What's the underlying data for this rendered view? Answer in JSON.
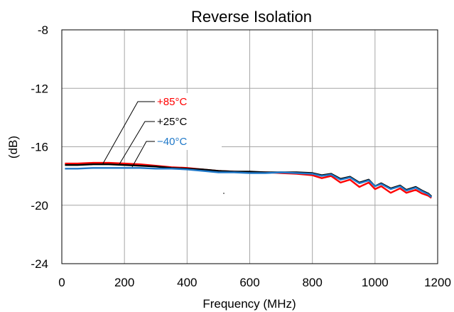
{
  "chart_data": {
    "type": "line",
    "title": "Reverse Isolation",
    "xlabel": "Frequency (MHz)",
    "ylabel": "(dB)",
    "xlim": [
      0,
      1200
    ],
    "ylim": [
      -24,
      -8
    ],
    "x_ticks": [
      "0",
      "200",
      "400",
      "600",
      "800",
      "1000",
      "1200"
    ],
    "y_ticks": [
      "-8",
      "-12",
      "-16",
      "-20",
      "-24"
    ],
    "grid": true,
    "legend": "inline labels with leader lines, upper-left",
    "series": [
      {
        "name": "+85°C",
        "color": "#ff0000",
        "x": [
          10,
          50,
          100,
          150,
          200,
          250,
          300,
          350,
          400,
          450,
          500,
          550,
          600,
          650,
          700,
          750,
          800,
          830,
          860,
          890,
          920,
          950,
          980,
          1000,
          1020,
          1050,
          1080,
          1100,
          1130,
          1150,
          1170,
          1180
        ],
        "values": [
          -17.15,
          -17.15,
          -17.1,
          -17.1,
          -17.15,
          -17.2,
          -17.3,
          -17.4,
          -17.45,
          -17.55,
          -17.65,
          -17.7,
          -17.75,
          -17.75,
          -17.8,
          -17.85,
          -17.95,
          -18.15,
          -18.0,
          -18.45,
          -18.25,
          -18.75,
          -18.45,
          -18.9,
          -18.7,
          -19.15,
          -18.85,
          -19.15,
          -18.95,
          -19.2,
          -19.35,
          -19.5
        ]
      },
      {
        "name": "+25°C",
        "color": "#000000",
        "x": [
          10,
          50,
          100,
          150,
          200,
          250,
          300,
          350,
          400,
          450,
          500,
          550,
          600,
          650,
          700,
          750,
          800,
          830,
          860,
          890,
          920,
          950,
          980,
          1000,
          1020,
          1050,
          1080,
          1100,
          1130,
          1150,
          1170,
          1180
        ],
        "values": [
          -17.25,
          -17.25,
          -17.2,
          -17.2,
          -17.25,
          -17.3,
          -17.35,
          -17.45,
          -17.5,
          -17.55,
          -17.65,
          -17.7,
          -17.7,
          -17.75,
          -17.75,
          -17.75,
          -17.8,
          -17.95,
          -17.85,
          -18.2,
          -18.05,
          -18.45,
          -18.25,
          -18.7,
          -18.5,
          -18.85,
          -18.65,
          -18.95,
          -18.75,
          -19.0,
          -19.2,
          -19.4
        ]
      },
      {
        "name": "−40°C",
        "color": "#1f78c8",
        "x": [
          10,
          50,
          100,
          150,
          200,
          250,
          300,
          350,
          400,
          450,
          500,
          550,
          600,
          650,
          700,
          750,
          800,
          830,
          860,
          890,
          920,
          950,
          980,
          1000,
          1020,
          1050,
          1080,
          1100,
          1130,
          1150,
          1170,
          1180
        ],
        "values": [
          -17.5,
          -17.5,
          -17.45,
          -17.45,
          -17.45,
          -17.45,
          -17.5,
          -17.5,
          -17.55,
          -17.65,
          -17.75,
          -17.75,
          -17.8,
          -17.8,
          -17.75,
          -17.8,
          -17.85,
          -18.0,
          -17.9,
          -18.25,
          -18.1,
          -18.5,
          -18.3,
          -18.7,
          -18.55,
          -18.9,
          -18.7,
          -19.0,
          -18.8,
          -19.05,
          -19.25,
          -19.45
        ]
      }
    ]
  }
}
